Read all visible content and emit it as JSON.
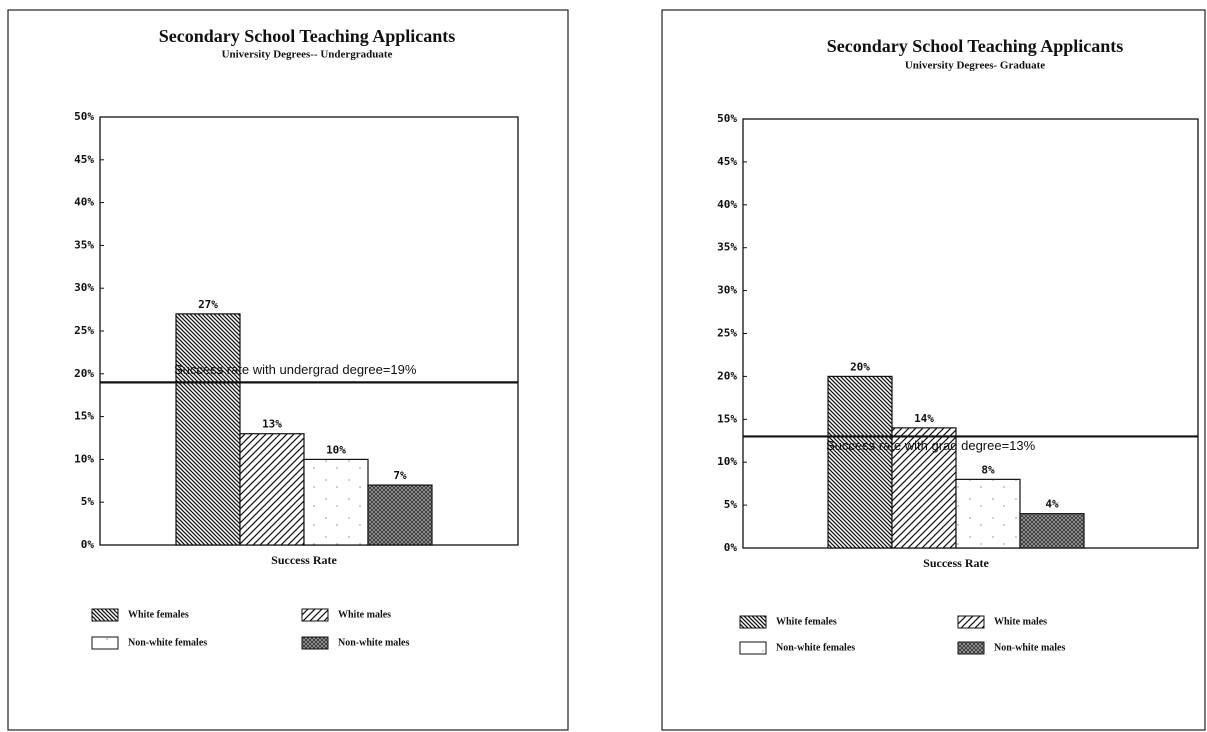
{
  "chart_data": [
    {
      "type": "bar",
      "title": "Secondary School Teaching Applicants",
      "subtitle": "University Degrees-- Undergraduate",
      "xlabel": "Success Rate",
      "categories": [
        "Success Rate"
      ],
      "series": [
        {
          "name": "White females",
          "values": [
            27
          ],
          "value_labels": [
            "27%"
          ]
        },
        {
          "name": "White males",
          "values": [
            13
          ],
          "value_labels": [
            "13%"
          ]
        },
        {
          "name": "Non-white females",
          "values": [
            10
          ],
          "value_labels": [
            "10%"
          ]
        },
        {
          "name": "Non-white males",
          "values": [
            7
          ],
          "value_labels": [
            "7%"
          ]
        }
      ],
      "ylim": [
        0,
        50
      ],
      "yticks": [
        {
          "value": 0,
          "label": "0%"
        },
        {
          "value": 5,
          "label": "5%"
        },
        {
          "value": 10,
          "label": "10%"
        },
        {
          "value": 15,
          "label": "15%"
        },
        {
          "value": 20,
          "label": "20%"
        },
        {
          "value": 25,
          "label": "25%"
        },
        {
          "value": 30,
          "label": "30%"
        },
        {
          "value": 35,
          "label": "35%"
        },
        {
          "value": 40,
          "label": "40%"
        },
        {
          "value": 45,
          "label": "45%"
        },
        {
          "value": 50,
          "label": "50%"
        }
      ],
      "reference_line": {
        "value": 19,
        "label": "Success rate with undergrad degree=19%"
      }
    },
    {
      "type": "bar",
      "title": "Secondary School Teaching Applicants",
      "subtitle": "University Degrees- Graduate",
      "xlabel": "Success Rate",
      "categories": [
        "Success Rate"
      ],
      "series": [
        {
          "name": "White females",
          "values": [
            20
          ],
          "value_labels": [
            "20%"
          ]
        },
        {
          "name": "White males",
          "values": [
            14
          ],
          "value_labels": [
            "14%"
          ]
        },
        {
          "name": "Non-white females",
          "values": [
            8
          ],
          "value_labels": [
            "8%"
          ]
        },
        {
          "name": "Non-white males",
          "values": [
            4
          ],
          "value_labels": [
            "4%"
          ]
        }
      ],
      "ylim": [
        0,
        50
      ],
      "yticks": [
        {
          "value": 0,
          "label": "0%"
        },
        {
          "value": 5,
          "label": "5%"
        },
        {
          "value": 10,
          "label": "10%"
        },
        {
          "value": 15,
          "label": "15%"
        },
        {
          "value": 20,
          "label": "20%"
        },
        {
          "value": 25,
          "label": "25%"
        },
        {
          "value": 30,
          "label": "30%"
        },
        {
          "value": 35,
          "label": "35%"
        },
        {
          "value": 40,
          "label": "40%"
        },
        {
          "value": 45,
          "label": "45%"
        },
        {
          "value": 50,
          "label": "50%"
        }
      ],
      "reference_line": {
        "value": 13,
        "label": "Success rate with grad degree=13%"
      }
    }
  ]
}
